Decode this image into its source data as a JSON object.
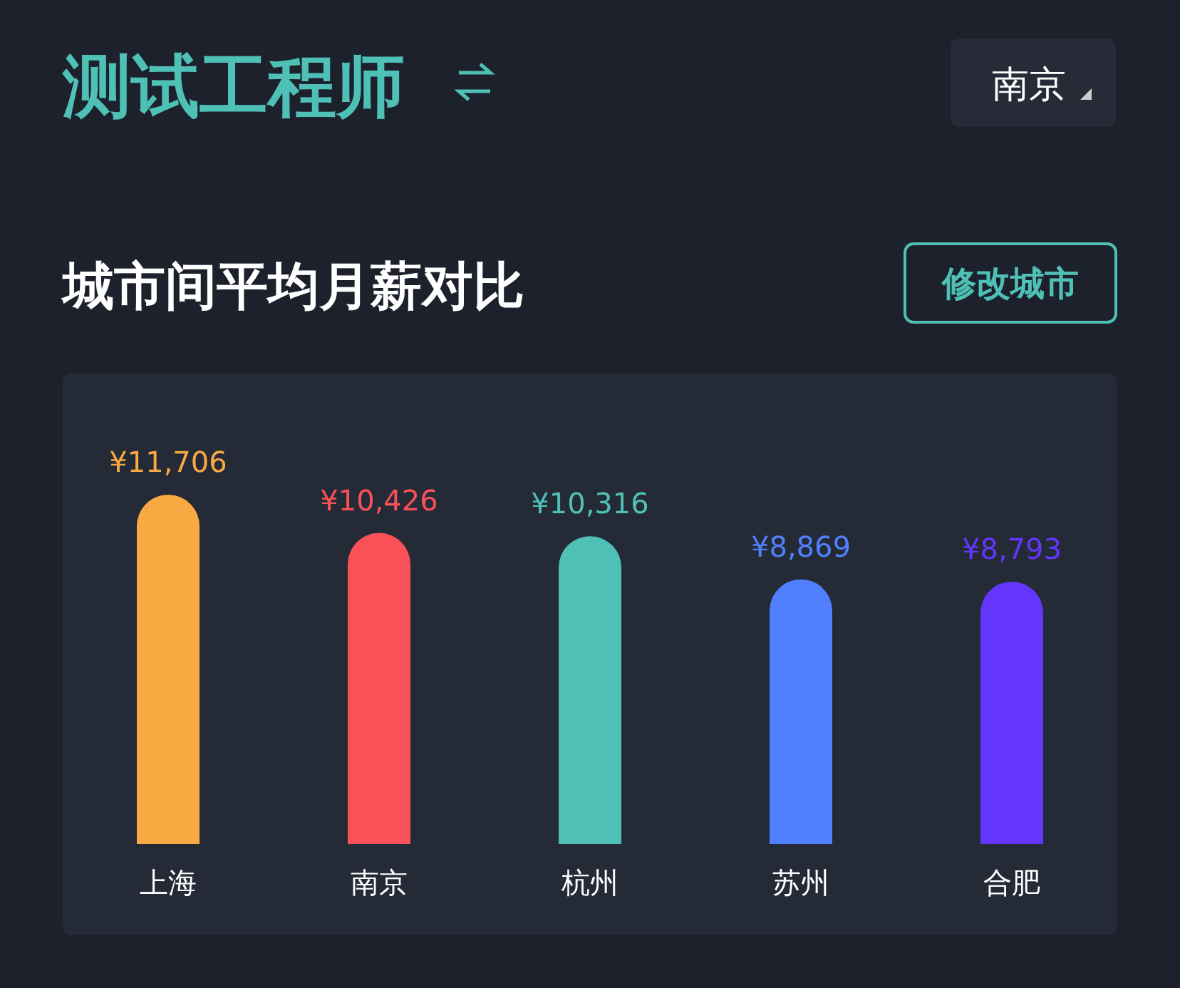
{
  "chart_data": {
    "type": "bar",
    "title": "测试工程师",
    "subtitle": "城市间平均月薪对比",
    "annotations": [
      "南京",
      "修改城市"
    ],
    "categories": [
      "上海",
      "南京",
      "杭州",
      "苏州",
      "合肥"
    ],
    "values": [
      11706,
      10426,
      10316,
      8869,
      8793
    ],
    "colors": [
      "#f9a942",
      "#fa5058",
      "#4fc0b6",
      "#5080fd",
      "#6436fb"
    ],
    "value_labels": [
      "¥11,706",
      "¥10,426",
      "¥10,316",
      "¥8,869",
      "¥8,793"
    ]
  }
}
